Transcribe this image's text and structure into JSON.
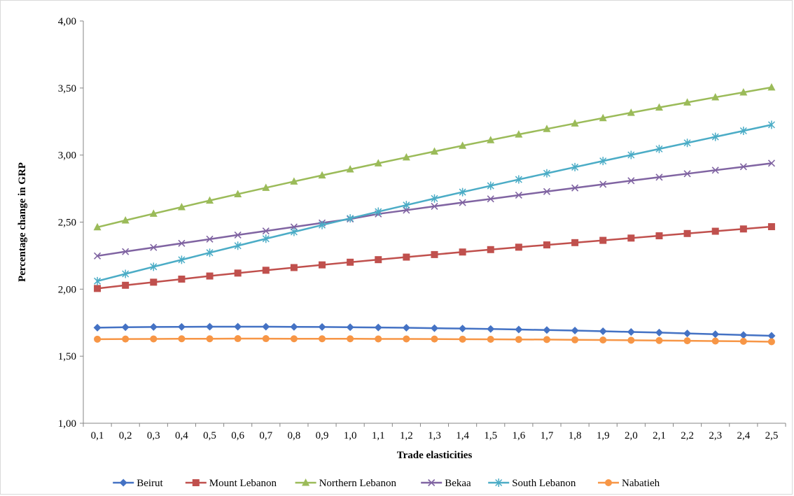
{
  "chart_data": {
    "type": "line",
    "xlabel": "Trade elasticities",
    "ylabel": "Percentage change in GRP",
    "ylim": [
      1.0,
      4.0
    ],
    "yticks": [
      "1,00",
      "1,50",
      "2,00",
      "2,50",
      "3,00",
      "3,50",
      "4,00"
    ],
    "categories": [
      "0,1",
      "0,2",
      "0,3",
      "0,4",
      "0,5",
      "0,6",
      "0,7",
      "0,8",
      "0,9",
      "1,0",
      "1,1",
      "1,2",
      "1,3",
      "1,4",
      "1,5",
      "1,6",
      "1,7",
      "1,8",
      "1,9",
      "2,0",
      "2,1",
      "2,2",
      "2,3",
      "2,4",
      "2,5"
    ],
    "grid": false,
    "legend_position": "bottom",
    "series": [
      {
        "name": "Beirut",
        "color": "#4472C4",
        "marker": "diamond",
        "values": [
          1.713,
          1.716,
          1.718,
          1.719,
          1.72,
          1.72,
          1.72,
          1.719,
          1.718,
          1.716,
          1.714,
          1.712,
          1.709,
          1.706,
          1.703,
          1.699,
          1.695,
          1.691,
          1.686,
          1.681,
          1.676,
          1.67,
          1.664,
          1.658,
          1.652
        ]
      },
      {
        "name": "Mount Lebanon",
        "color": "#C0504D",
        "marker": "square",
        "values": [
          2.005,
          2.029,
          2.052,
          2.075,
          2.098,
          2.12,
          2.141,
          2.161,
          2.181,
          2.201,
          2.22,
          2.239,
          2.258,
          2.277,
          2.295,
          2.313,
          2.33,
          2.347,
          2.364,
          2.381,
          2.398,
          2.415,
          2.432,
          2.449,
          2.466
        ]
      },
      {
        "name": "Northern Lebanon",
        "color": "#9BBB59",
        "marker": "triangle",
        "values": [
          2.462,
          2.513,
          2.563,
          2.612,
          2.661,
          2.709,
          2.756,
          2.803,
          2.849,
          2.894,
          2.939,
          2.983,
          3.027,
          3.07,
          3.112,
          3.154,
          3.195,
          3.236,
          3.276,
          3.316,
          3.355,
          3.393,
          3.431,
          3.468,
          3.505
        ]
      },
      {
        "name": "Bekaa",
        "color": "#8064A2",
        "marker": "x",
        "values": [
          2.248,
          2.28,
          2.311,
          2.342,
          2.373,
          2.404,
          2.434,
          2.464,
          2.494,
          2.523,
          2.561,
          2.589,
          2.618,
          2.646,
          2.673,
          2.701,
          2.728,
          2.755,
          2.782,
          2.809,
          2.835,
          2.861,
          2.887,
          2.913,
          2.939
        ]
      },
      {
        "name": "South Lebanon",
        "color": "#4BACC6",
        "marker": "star",
        "values": [
          2.06,
          2.114,
          2.167,
          2.219,
          2.272,
          2.324,
          2.376,
          2.427,
          2.478,
          2.528,
          2.578,
          2.627,
          2.676,
          2.724,
          2.771,
          2.818,
          2.864,
          2.91,
          2.956,
          3.001,
          3.046,
          3.091,
          3.136,
          3.181,
          3.226
        ]
      },
      {
        "name": "Nabatieh",
        "color": "#F79646",
        "marker": "circle",
        "values": [
          1.627,
          1.628,
          1.629,
          1.63,
          1.63,
          1.631,
          1.631,
          1.63,
          1.63,
          1.63,
          1.629,
          1.629,
          1.628,
          1.627,
          1.626,
          1.625,
          1.624,
          1.622,
          1.621,
          1.619,
          1.617,
          1.615,
          1.613,
          1.611,
          1.608
        ]
      }
    ]
  }
}
